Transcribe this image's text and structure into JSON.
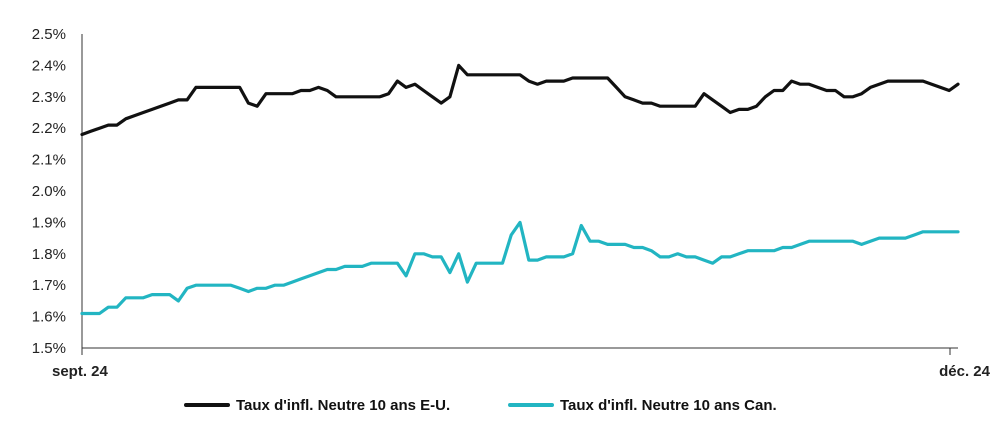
{
  "chart_data": {
    "type": "line",
    "title": "",
    "xlabel": "",
    "ylabel": "",
    "ylim": [
      1.5,
      2.5
    ],
    "y_ticks": [
      "1.5%",
      "1.6%",
      "1.7%",
      "1.8%",
      "1.9%",
      "2.0%",
      "2.1%",
      "2.2%",
      "2.3%",
      "2.4%",
      "2.5%"
    ],
    "x_ticks": [
      "sept. 24",
      "déc. 24"
    ],
    "grid": "none",
    "legend_position": "bottom",
    "series": [
      {
        "name": "Taux d'infl. Neutre 10 ans E-U.",
        "color": "#111111",
        "values": [
          2.18,
          2.19,
          2.2,
          2.21,
          2.21,
          2.23,
          2.24,
          2.25,
          2.26,
          2.27,
          2.28,
          2.29,
          2.29,
          2.33,
          2.33,
          2.33,
          2.33,
          2.33,
          2.33,
          2.28,
          2.27,
          2.31,
          2.31,
          2.31,
          2.31,
          2.32,
          2.32,
          2.33,
          2.32,
          2.3,
          2.3,
          2.3,
          2.3,
          2.3,
          2.3,
          2.31,
          2.35,
          2.33,
          2.34,
          2.32,
          2.3,
          2.28,
          2.3,
          2.4,
          2.37,
          2.37,
          2.37,
          2.37,
          2.37,
          2.37,
          2.37,
          2.35,
          2.34,
          2.35,
          2.35,
          2.35,
          2.36,
          2.36,
          2.36,
          2.36,
          2.36,
          2.33,
          2.3,
          2.29,
          2.28,
          2.28,
          2.27,
          2.27,
          2.27,
          2.27,
          2.27,
          2.31,
          2.29,
          2.27,
          2.25,
          2.26,
          2.26,
          2.27,
          2.3,
          2.32,
          2.32,
          2.35,
          2.34,
          2.34,
          2.33,
          2.32,
          2.32,
          2.3,
          2.3,
          2.31,
          2.33,
          2.34,
          2.35,
          2.35,
          2.35,
          2.35,
          2.35,
          2.34,
          2.33,
          2.32,
          2.34
        ]
      },
      {
        "name": "Taux d'infl. Neutre 10 ans Can.",
        "color": "#22b5c2",
        "values": [
          1.61,
          1.61,
          1.61,
          1.63,
          1.63,
          1.66,
          1.66,
          1.66,
          1.67,
          1.67,
          1.67,
          1.65,
          1.69,
          1.7,
          1.7,
          1.7,
          1.7,
          1.7,
          1.69,
          1.68,
          1.69,
          1.69,
          1.7,
          1.7,
          1.71,
          1.72,
          1.73,
          1.74,
          1.75,
          1.75,
          1.76,
          1.76,
          1.76,
          1.77,
          1.77,
          1.77,
          1.77,
          1.73,
          1.8,
          1.8,
          1.79,
          1.79,
          1.74,
          1.8,
          1.71,
          1.77,
          1.77,
          1.77,
          1.77,
          1.86,
          1.9,
          1.78,
          1.78,
          1.79,
          1.79,
          1.79,
          1.8,
          1.89,
          1.84,
          1.84,
          1.83,
          1.83,
          1.83,
          1.82,
          1.82,
          1.81,
          1.79,
          1.79,
          1.8,
          1.79,
          1.79,
          1.78,
          1.77,
          1.79,
          1.79,
          1.8,
          1.81,
          1.81,
          1.81,
          1.81,
          1.82,
          1.82,
          1.83,
          1.84,
          1.84,
          1.84,
          1.84,
          1.84,
          1.84,
          1.83,
          1.84,
          1.85,
          1.85,
          1.85,
          1.85,
          1.86,
          1.87,
          1.87,
          1.87,
          1.87,
          1.87
        ]
      }
    ]
  }
}
